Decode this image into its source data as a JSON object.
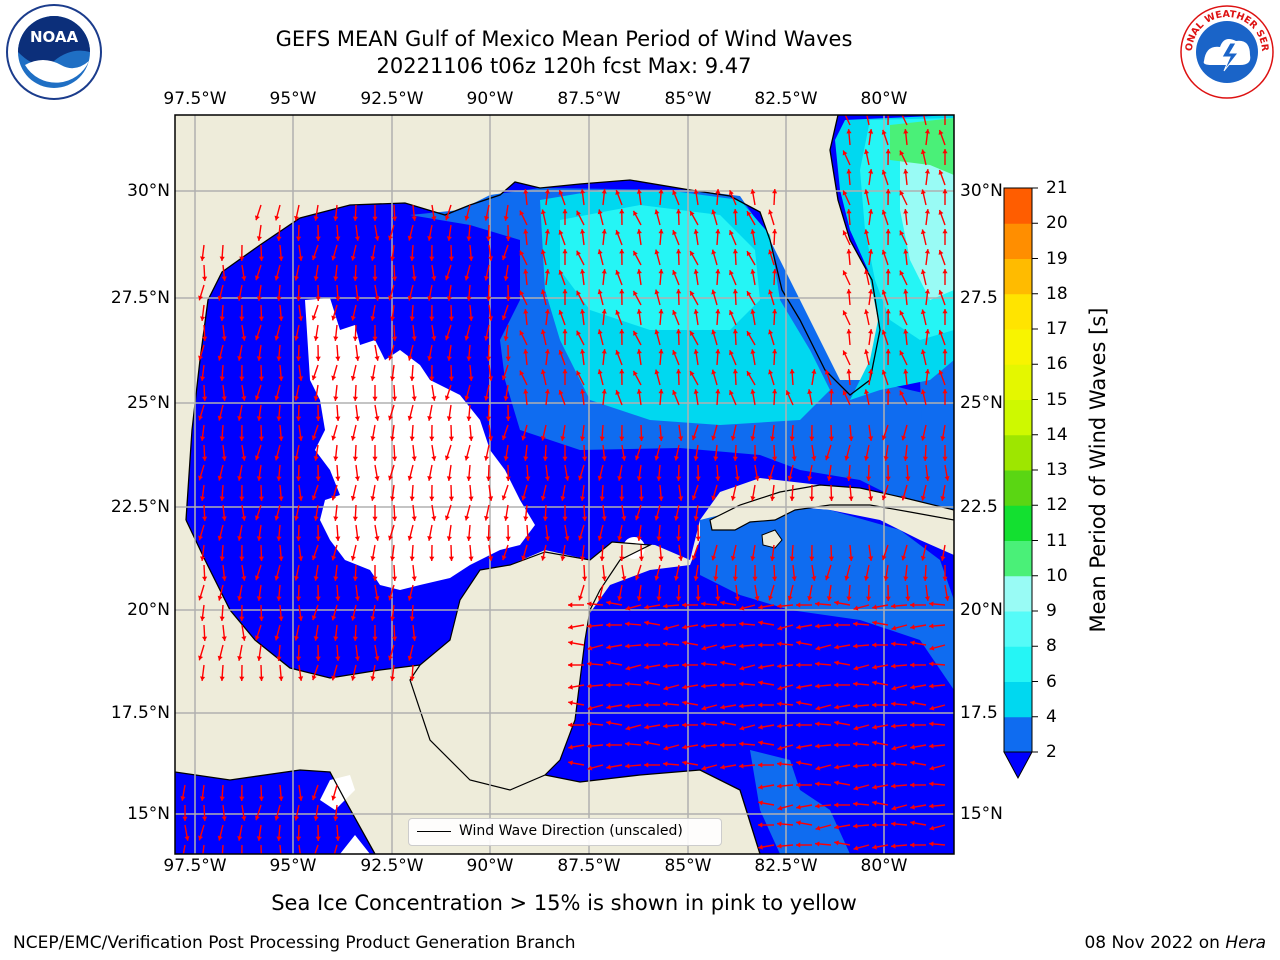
{
  "header": {
    "title_line1": "GEFS MEAN Gulf of Mexico Mean Period of Wind Waves",
    "title_line2": "20221106 t06z 120h fcst   Max: 9.47"
  },
  "axes": {
    "lon_top": [
      "97.5°W",
      "95°W",
      "92.5°W",
      "90°W",
      "87.5°W",
      "85°W",
      "82.5°W",
      "80°W"
    ],
    "lon_bottom": [
      "97.5°W",
      "95°W",
      "92.5°W",
      "90°W",
      "87.5°W",
      "85°W",
      "82.5°W",
      "80°W"
    ],
    "lat_left": [
      "30°N",
      "27.5°N",
      "25°N",
      "22.5°N",
      "20°N",
      "17.5°N",
      "15°N"
    ],
    "lat_right": [
      "30°N",
      "27.5",
      "25°N",
      "22.5",
      "20°N",
      "17.5",
      "15°N"
    ]
  },
  "colorbar": {
    "title": "Mean Period of Wind Waves [s]",
    "ticks": [
      "2",
      "4",
      "6",
      "8",
      "9",
      "10",
      "11",
      "12",
      "13",
      "14",
      "15",
      "16",
      "17",
      "18",
      "19",
      "20",
      "21"
    ],
    "colors": [
      "#0f6cf0",
      "#00d8f0",
      "#25f5f5",
      "#55fbf8",
      "#99fbf5",
      "#4af078",
      "#13e030",
      "#5ad613",
      "#9ee600",
      "#cef900",
      "#e4f700",
      "#f8f400",
      "#ffe400",
      "#ffbb00",
      "#ff8e00",
      "#ff5d00",
      "#ff2400",
      "#ff0000"
    ],
    "extend_color": "#0000ff"
  },
  "map": {
    "land_color": "#eeecda",
    "ocean_base_color": "#0000ff",
    "arrow_color": "#ff0000"
  },
  "legend": {
    "label": "Wind Wave Direction (unscaled)"
  },
  "footer": {
    "subtitle": "Sea Ice Concentration > 15% is shown in pink to yellow",
    "left": "NCEP/EMC/Verification Post Processing Product Generation Branch",
    "right_date": "08 Nov 2022 on ",
    "right_host": "Hera"
  },
  "logos": {
    "noaa": "NOAA",
    "nws": "NATIONAL WEATHER SERVICE"
  }
}
